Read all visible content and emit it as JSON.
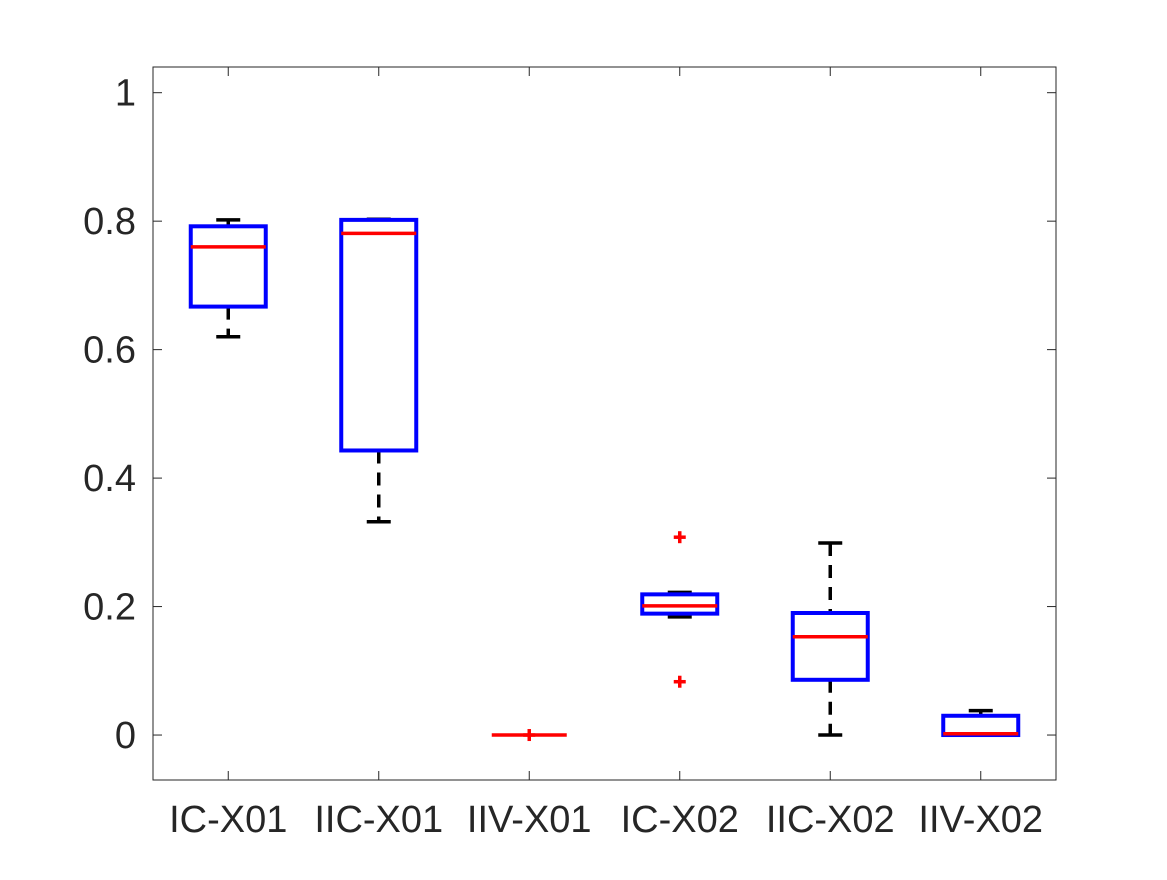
{
  "chart_data": {
    "type": "box",
    "title": "",
    "xlabel": "",
    "ylabel": "",
    "ylim": [
      -0.07,
      1.04
    ],
    "yticks": [
      0,
      0.2,
      0.4,
      0.6,
      0.8,
      1
    ],
    "ytick_labels": [
      "0",
      "0.2",
      "0.4",
      "0.6",
      "0.8",
      "1"
    ],
    "grid": false,
    "categories": [
      "IC-X01",
      "IIC-X01",
      "IIV-X01",
      "IC-X02",
      "IIC-X02",
      "IIV-X02"
    ],
    "boxes": [
      {
        "whisker_low": 0.62,
        "q1": 0.667,
        "median": 0.76,
        "q3": 0.792,
        "whisker_high": 0.802,
        "outliers": []
      },
      {
        "whisker_low": 0.332,
        "q1": 0.443,
        "median": 0.781,
        "q3": 0.802,
        "whisker_high": 0.803,
        "outliers": []
      },
      {
        "whisker_low": 0.0,
        "q1": 0.0,
        "median": 0.0,
        "q3": 0.0,
        "whisker_high": 0.0,
        "outliers": [
          0.0
        ]
      },
      {
        "whisker_low": 0.184,
        "q1": 0.189,
        "median": 0.201,
        "q3": 0.219,
        "whisker_high": 0.222,
        "outliers": [
          0.308,
          0.083
        ]
      },
      {
        "whisker_low": 0.0,
        "q1": 0.086,
        "median": 0.153,
        "q3": 0.19,
        "whisker_high": 0.299,
        "outliers": []
      },
      {
        "whisker_low": 0.0,
        "q1": 0.0,
        "median": 0.002,
        "q3": 0.03,
        "whisker_high": 0.038,
        "outliers": []
      }
    ],
    "colors": {
      "box": "#0000ff",
      "median": "#ff0000",
      "whisker": "#000000",
      "outlier": "#ff0000",
      "axis": "#262626"
    }
  }
}
